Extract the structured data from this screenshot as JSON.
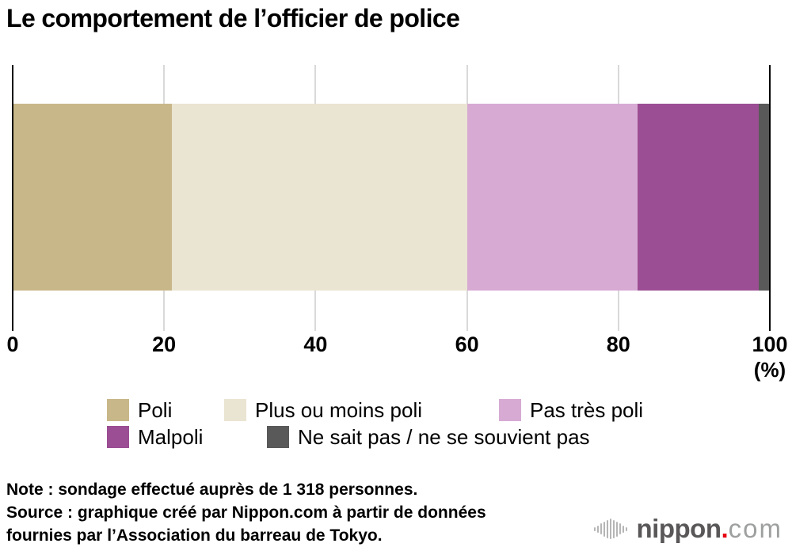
{
  "title": "Le comportement de l’officier de police",
  "chart_data": {
    "type": "bar",
    "orientation": "horizontal-stacked",
    "title": "Le comportement de l’officier de police",
    "categories": [
      "Poli",
      "Plus ou moins poli",
      "Pas très poli",
      "Malpoli",
      "Ne sait pas / ne se souvient pas"
    ],
    "values": [
      21,
      39,
      22.5,
      16,
      1.5
    ],
    "colors": [
      "#c8b789",
      "#eae4d2",
      "#d6aad3",
      "#9c4e94",
      "#595959"
    ],
    "xlim": [
      0,
      100
    ],
    "x_ticks": [
      0,
      20,
      40,
      60,
      80,
      100
    ],
    "x_unit_label": "(%)",
    "grid": true,
    "gridline_color": "#d9d9d9",
    "axis_color": "#000000",
    "legend_position": "bottom"
  },
  "notes": {
    "lines": [
      "Note : sondage effectué auprès de 1 318 personnes.",
      "Source : graphique créé par Nippon.com à partir de données",
      "fournies par l’Association du barreau de Tokyo."
    ]
  },
  "logo": {
    "name": "nippon.com",
    "icon": "soundwave-bars-icon",
    "text_main": "nippon",
    "text_dot": ".",
    "text_suffix": "com",
    "color_main": "#595757",
    "color_dot": "#e60012",
    "color_suffix": "#9e9f9f",
    "color_bars": "#b5b5b6"
  }
}
